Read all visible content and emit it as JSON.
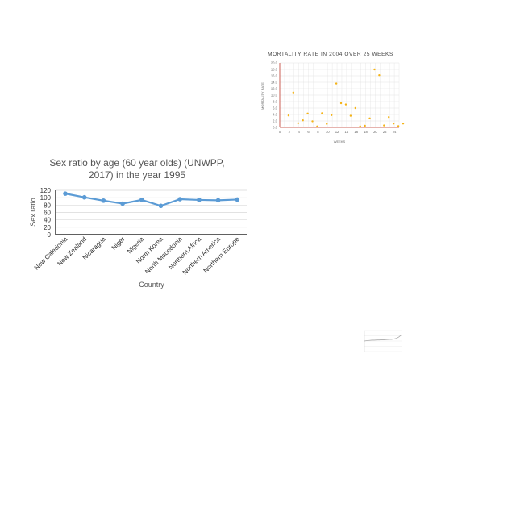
{
  "chart_data": [
    {
      "type": "scatter",
      "title": "MORTALITY RATE IN 2004 OVER 25 WEEKS",
      "xlabel": "WEEKS",
      "ylabel": "MORTALITY RATE",
      "xlim": [
        0,
        25
      ],
      "ylim": [
        0,
        20
      ],
      "xticks": [
        "0",
        "2",
        "4",
        "6",
        "8",
        "10",
        "12",
        "14",
        "16",
        "18",
        "20",
        "22",
        "24"
      ],
      "yticks": [
        "0.0",
        "2.0",
        "4.0",
        "6.0",
        "8.0",
        "10.0",
        "12.0",
        "14.0",
        "16.0",
        "18.0",
        "20.0"
      ],
      "grid": true,
      "color": "#f5b316",
      "x": [
        1,
        2,
        3,
        4,
        5,
        6,
        7,
        8,
        9,
        10,
        11,
        12,
        13,
        14,
        15,
        16,
        17,
        18,
        19,
        20,
        21,
        22,
        23,
        24,
        25
      ],
      "y": [
        3.7,
        10.8,
        1.3,
        2.2,
        4.3,
        1.9,
        0.3,
        4.4,
        1.1,
        3.8,
        13.6,
        7.5,
        7.1,
        3.6,
        6.0,
        0.3,
        0.5,
        2.8,
        18.0,
        16.2,
        0.6,
        3.2,
        1.2,
        0.4,
        1.2
      ]
    },
    {
      "type": "line",
      "title": "Sex ratio by age (60 year olds) (UNWPP, 2017) in the year 1995",
      "title_lines": [
        "Sex ratio by age (60 year olds) (UNWPP,",
        "2017) in the year 1995"
      ],
      "xlabel": "Country",
      "ylabel": "Sex ratio",
      "ylim": [
        0,
        120
      ],
      "yticks": [
        "0",
        "20",
        "40",
        "60",
        "80",
        "100",
        "120"
      ],
      "grid": true,
      "color": "#5b9bd5",
      "categories": [
        "New Caledonia",
        "New Zealand",
        "Nicaragua",
        "Niger",
        "Nigeria",
        "North Korea",
        "North Macedonia",
        "Northern Africa",
        "Northern America",
        "Northern Europe"
      ],
      "values": [
        111,
        101,
        92,
        84,
        94,
        78,
        96,
        94,
        93,
        95
      ]
    },
    {
      "type": "line",
      "title": "",
      "color": "#aaaaaa",
      "x": [
        0,
        1,
        2,
        3,
        4,
        5,
        6,
        7,
        8,
        9,
        10,
        11,
        12,
        13,
        14,
        15
      ],
      "values": [
        50,
        52,
        53,
        54,
        54,
        55,
        55,
        56,
        56,
        57,
        58,
        58,
        60,
        63,
        70,
        80
      ],
      "ylim": [
        0,
        100
      ]
    }
  ]
}
